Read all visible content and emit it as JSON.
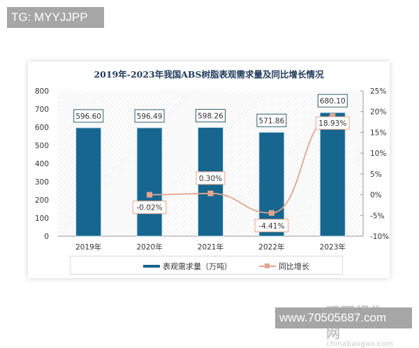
{
  "watermarks": {
    "top_left": "TG: MYYJJPP",
    "bottom_right": "www.70505687.com",
    "logo_cn": "观研报告网",
    "logo_en": "chinabaogao.com"
  },
  "chart_data": {
    "type": "bar+line",
    "title": "2019年-2023年我国ABS树脂表观需求量及同比增长情况",
    "categories": [
      "2019年",
      "2020年",
      "2021年",
      "2022年",
      "2023年"
    ],
    "series": [
      {
        "name": "表观需求量（万吨）",
        "type": "bar",
        "axis": "left",
        "color": "#17668f",
        "values": [
          596.6,
          596.49,
          598.26,
          571.86,
          680.1
        ],
        "labels": [
          "596.60",
          "596.49",
          "598.26",
          "571.86",
          "680.10"
        ]
      },
      {
        "name": "同比增长",
        "type": "line",
        "axis": "right",
        "color": "#e3a58c",
        "values": [
          null,
          -0.02,
          0.3,
          -4.41,
          18.93
        ],
        "labels": [
          "",
          "-0.02%",
          "0.30%",
          "-4.41%",
          "18.93%"
        ]
      }
    ],
    "y_left": {
      "min": 0,
      "max": 800,
      "ticks": [
        "0",
        "100",
        "200",
        "300",
        "400",
        "500",
        "600",
        "700",
        "800"
      ]
    },
    "y_right": {
      "min": -10,
      "max": 25,
      "ticks": [
        "-10%",
        "-5%",
        "0%",
        "5%",
        "10%",
        "15%",
        "20%",
        "25%"
      ]
    },
    "legend_position": "bottom",
    "grid": false
  }
}
